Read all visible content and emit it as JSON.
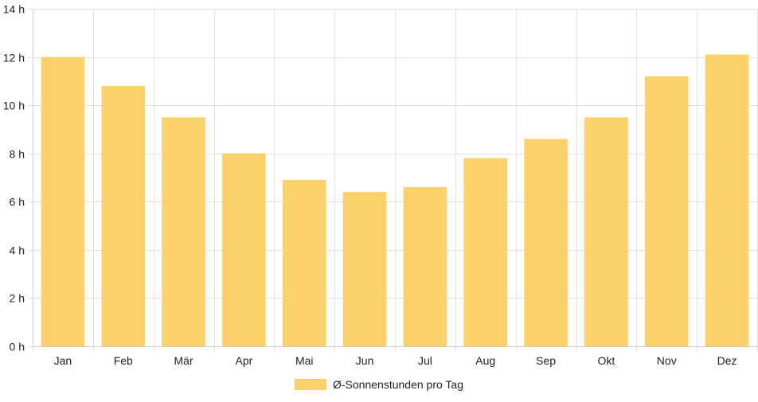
{
  "chart_data": {
    "type": "bar",
    "categories": [
      "Jan",
      "Feb",
      "Mär",
      "Apr",
      "Mai",
      "Jun",
      "Jul",
      "Aug",
      "Sep",
      "Okt",
      "Nov",
      "Dez"
    ],
    "series": [
      {
        "name": "Ø-Sonnenstunden pro Tag",
        "values": [
          12.0,
          10.8,
          9.5,
          8.0,
          6.9,
          6.4,
          6.6,
          7.8,
          8.6,
          9.5,
          11.2,
          12.1
        ]
      }
    ],
    "ylim": [
      0,
      14
    ],
    "yticks": [
      0,
      2,
      4,
      6,
      8,
      10,
      12,
      14
    ],
    "ytick_suffix": " h",
    "grid": true,
    "legend_position": "bottom",
    "colors": {
      "bar": "#fdd16a",
      "grid": "#e2e2e2",
      "axis": "#cccccc",
      "text": "#222222"
    }
  }
}
